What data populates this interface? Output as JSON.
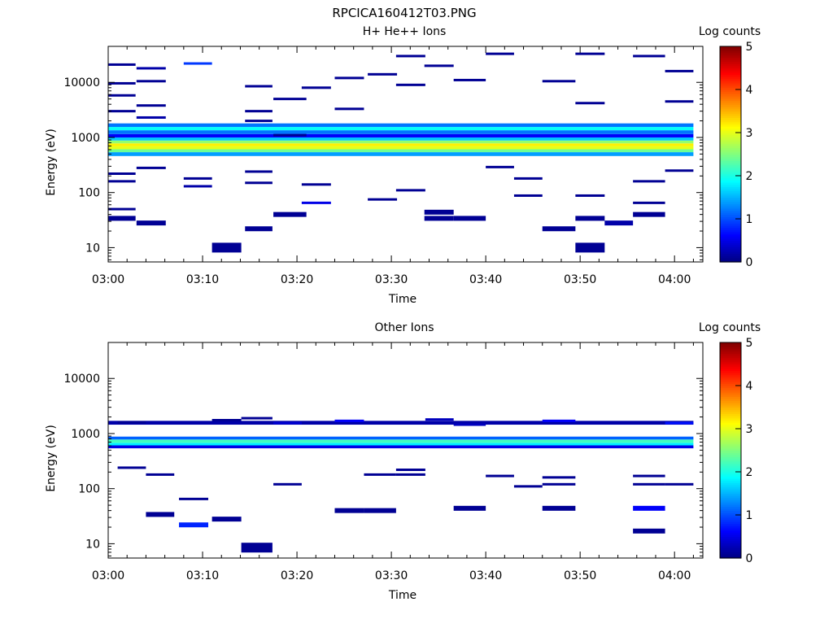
{
  "figure_title": "RPCICA160412T03.PNG",
  "colorbar": {
    "label": "Log counts",
    "ticks": [
      "0",
      "1",
      "2",
      "3",
      "4",
      "5"
    ],
    "range": [
      0,
      5
    ]
  },
  "chart_data": [
    {
      "type": "heatmap",
      "title": "H+ He++ Ions",
      "xlabel": "Time",
      "ylabel": "Energy (eV)",
      "y_scale": "log",
      "x_ticks": [
        "03:00",
        "03:10",
        "03:20",
        "03:30",
        "03:40",
        "03:50",
        "04:00"
      ],
      "y_ticks": [
        "10",
        "100",
        "1000",
        "10000"
      ],
      "xlim_minutes": [
        0,
        63
      ],
      "ylim": [
        5.5,
        45000
      ],
      "cells": [
        {
          "t0": 0,
          "t1": 2.9,
          "e": 34,
          "v": 0.1
        },
        {
          "t0": 0,
          "t1": 2.9,
          "e": 50,
          "v": 0.1
        },
        {
          "t0": 0,
          "t1": 2.9,
          "e": 160,
          "v": 0.1
        },
        {
          "t0": 0,
          "t1": 2.9,
          "e": 220,
          "v": 0.1
        },
        {
          "t0": 0,
          "t1": 2.9,
          "e": 3000,
          "v": 0.1
        },
        {
          "t0": 0,
          "t1": 2.9,
          "e": 5800,
          "v": 0.1
        },
        {
          "t0": 0,
          "t1": 2.9,
          "e": 9600,
          "v": 0.1
        },
        {
          "t0": 0,
          "t1": 2.9,
          "e": 21000,
          "v": 0.1
        },
        {
          "t0": 3,
          "t1": 6.1,
          "e": 28,
          "v": 0.1
        },
        {
          "t0": 3,
          "t1": 6.1,
          "e": 280,
          "v": 0.1
        },
        {
          "t0": 3,
          "t1": 6.1,
          "e": 2300,
          "v": 0.2
        },
        {
          "t0": 3,
          "t1": 6.1,
          "e": 3800,
          "v": 0.1
        },
        {
          "t0": 3,
          "t1": 6.1,
          "e": 10500,
          "v": 0.1
        },
        {
          "t0": 3,
          "t1": 6.1,
          "e": 18000,
          "v": 0.2
        },
        {
          "t0": 8,
          "t1": 11,
          "e": 130,
          "v": 0.2
        },
        {
          "t0": 8,
          "t1": 11,
          "e": 180,
          "v": 0.1
        },
        {
          "t0": 8,
          "t1": 11,
          "e": 22000,
          "v": 0.9
        },
        {
          "t0": 11,
          "t1": 14.1,
          "e": 10,
          "v": 0.1
        },
        {
          "t0": 14.5,
          "t1": 17.4,
          "e": 22,
          "v": 0.1
        },
        {
          "t0": 14.5,
          "t1": 17.4,
          "e": 150,
          "v": 0.1
        },
        {
          "t0": 14.5,
          "t1": 17.4,
          "e": 240,
          "v": 0.1
        },
        {
          "t0": 14.5,
          "t1": 17.4,
          "e": 2000,
          "v": 0.1
        },
        {
          "t0": 14.5,
          "t1": 17.4,
          "e": 3000,
          "v": 0.1
        },
        {
          "t0": 14.5,
          "t1": 17.4,
          "e": 8500,
          "v": 0.1
        },
        {
          "t0": 17.5,
          "t1": 21,
          "e": 40,
          "v": 0.1
        },
        {
          "t0": 17.5,
          "t1": 21,
          "e": 1100,
          "v": 0.1
        },
        {
          "t0": 17.5,
          "t1": 21,
          "e": 5000,
          "v": 0.1
        },
        {
          "t0": 20.5,
          "t1": 23.6,
          "e": 65,
          "v": 0.5
        },
        {
          "t0": 20.5,
          "t1": 23.6,
          "e": 140,
          "v": 0.1
        },
        {
          "t0": 20.5,
          "t1": 23.6,
          "e": 8000,
          "v": 0.1
        },
        {
          "t0": 24,
          "t1": 27.1,
          "e": 3300,
          "v": 0.1
        },
        {
          "t0": 24,
          "t1": 27.1,
          "e": 12000,
          "v": 0.1
        },
        {
          "t0": 27.5,
          "t1": 30.6,
          "e": 75,
          "v": 0.1
        },
        {
          "t0": 27.5,
          "t1": 30.6,
          "e": 14000,
          "v": 0.1
        },
        {
          "t0": 30.5,
          "t1": 33.6,
          "e": 110,
          "v": 0.1
        },
        {
          "t0": 30.5,
          "t1": 33.6,
          "e": 9000,
          "v": 0.1
        },
        {
          "t0": 30.5,
          "t1": 33.6,
          "e": 30000,
          "v": 0.1
        },
        {
          "t0": 33.5,
          "t1": 36.6,
          "e": 34,
          "v": 0.1
        },
        {
          "t0": 33.5,
          "t1": 36.6,
          "e": 44,
          "v": 0.1
        },
        {
          "t0": 33.5,
          "t1": 36.6,
          "e": 20000,
          "v": 0.1
        },
        {
          "t0": 36.6,
          "t1": 40,
          "e": 34,
          "v": 0.1
        },
        {
          "t0": 36.6,
          "t1": 40,
          "e": 11000,
          "v": 0.1
        },
        {
          "t0": 40,
          "t1": 43,
          "e": 290,
          "v": 0.1
        },
        {
          "t0": 40,
          "t1": 43,
          "e": 33000,
          "v": 0.1
        },
        {
          "t0": 43,
          "t1": 46,
          "e": 88,
          "v": 0.1
        },
        {
          "t0": 43,
          "t1": 46,
          "e": 180,
          "v": 0.1
        },
        {
          "t0": 46,
          "t1": 49.5,
          "e": 22,
          "v": 0.1
        },
        {
          "t0": 46,
          "t1": 49.5,
          "e": 10500,
          "v": 0.1
        },
        {
          "t0": 49.5,
          "t1": 52.6,
          "e": 10,
          "v": 0.1
        },
        {
          "t0": 49.5,
          "t1": 52.6,
          "e": 34,
          "v": 0.1
        },
        {
          "t0": 49.5,
          "t1": 52.6,
          "e": 88,
          "v": 0.1
        },
        {
          "t0": 49.5,
          "t1": 52.6,
          "e": 4200,
          "v": 0.1
        },
        {
          "t0": 49.5,
          "t1": 52.6,
          "e": 33000,
          "v": 0.1
        },
        {
          "t0": 52.6,
          "t1": 55.6,
          "e": 28,
          "v": 0.2
        },
        {
          "t0": 55.6,
          "t1": 59,
          "e": 40,
          "v": 0.1
        },
        {
          "t0": 55.6,
          "t1": 59,
          "e": 65,
          "v": 0.1
        },
        {
          "t0": 55.6,
          "t1": 59,
          "e": 160,
          "v": 0.1
        },
        {
          "t0": 55.6,
          "t1": 59,
          "e": 30000,
          "v": 0.1
        },
        {
          "t0": 59,
          "t1": 62,
          "e": 250,
          "v": 0.1
        },
        {
          "t0": 59,
          "t1": 62,
          "e": 4500,
          "v": 0.1
        },
        {
          "t0": 59,
          "t1": 62,
          "e": 16000,
          "v": 0.1
        }
      ],
      "bands": [
        {
          "e0": 460,
          "e1": 540,
          "v": 1.4
        },
        {
          "e0": 540,
          "e1": 610,
          "v": 2.4
        },
        {
          "e0": 610,
          "e1": 700,
          "v": 3.0
        },
        {
          "e0": 700,
          "e1": 780,
          "v": 3.2
        },
        {
          "e0": 780,
          "e1": 880,
          "v": 2.6
        },
        {
          "e0": 880,
          "e1": 1000,
          "v": 1.6
        },
        {
          "e0": 1000,
          "e1": 1150,
          "v": 0.6
        },
        {
          "e0": 1150,
          "e1": 1350,
          "v": 1.2
        },
        {
          "e0": 1350,
          "e1": 1550,
          "v": 1.9
        },
        {
          "e0": 1550,
          "e1": 1800,
          "v": 1.2
        }
      ],
      "band_tlim": [
        0,
        62
      ]
    },
    {
      "type": "heatmap",
      "title": "Other Ions",
      "xlabel": "Time",
      "ylabel": "Energy (eV)",
      "y_scale": "log",
      "x_ticks": [
        "03:00",
        "03:10",
        "03:20",
        "03:30",
        "03:40",
        "03:50",
        "04:00"
      ],
      "y_ticks": [
        "10",
        "100",
        "1000",
        "10000"
      ],
      "xlim_minutes": [
        0,
        63
      ],
      "ylim": [
        5.5,
        45000
      ],
      "cells": [
        {
          "t0": 1,
          "t1": 4,
          "e": 240,
          "v": 0.1
        },
        {
          "t0": 1,
          "t1": 4,
          "e": 1600,
          "v": 0.1
        },
        {
          "t0": 4,
          "t1": 7,
          "e": 34,
          "v": 0.1
        },
        {
          "t0": 4,
          "t1": 7,
          "e": 180,
          "v": 0.1
        },
        {
          "t0": 7.5,
          "t1": 10.6,
          "e": 22,
          "v": 0.8
        },
        {
          "t0": 7.5,
          "t1": 10.6,
          "e": 65,
          "v": 0.1
        },
        {
          "t0": 11,
          "t1": 14.1,
          "e": 28,
          "v": 0.1
        },
        {
          "t0": 11,
          "t1": 14.1,
          "e": 1750,
          "v": 0.1
        },
        {
          "t0": 14.1,
          "t1": 17.4,
          "e": 8.5,
          "v": 0.1
        },
        {
          "t0": 14.1,
          "t1": 17.4,
          "e": 1900,
          "v": 0.1
        },
        {
          "t0": 17.5,
          "t1": 20.5,
          "e": 120,
          "v": 0.1
        },
        {
          "t0": 17.5,
          "t1": 20.5,
          "e": 1550,
          "v": 0.4
        },
        {
          "t0": 24,
          "t1": 27.1,
          "e": 40,
          "v": 0.1
        },
        {
          "t0": 24,
          "t1": 27.1,
          "e": 1700,
          "v": 0.6
        },
        {
          "t0": 27.1,
          "t1": 30.5,
          "e": 40,
          "v": 0.1
        },
        {
          "t0": 27.1,
          "t1": 30.5,
          "e": 180,
          "v": 0.1
        },
        {
          "t0": 30.5,
          "t1": 33.6,
          "e": 180,
          "v": 0.1
        },
        {
          "t0": 30.5,
          "t1": 33.6,
          "e": 220,
          "v": 0.1
        },
        {
          "t0": 33.6,
          "t1": 36.6,
          "e": 1800,
          "v": 0.3
        },
        {
          "t0": 36.6,
          "t1": 40,
          "e": 44,
          "v": 0.1
        },
        {
          "t0": 36.6,
          "t1": 40,
          "e": 1450,
          "v": 0.3
        },
        {
          "t0": 40,
          "t1": 43,
          "e": 170,
          "v": 0.1
        },
        {
          "t0": 43,
          "t1": 46,
          "e": 110,
          "v": 0.1
        },
        {
          "t0": 46,
          "t1": 49.5,
          "e": 44,
          "v": 0.1
        },
        {
          "t0": 46,
          "t1": 49.5,
          "e": 120,
          "v": 0.1
        },
        {
          "t0": 46,
          "t1": 49.5,
          "e": 160,
          "v": 0.1
        },
        {
          "t0": 46,
          "t1": 49.5,
          "e": 1700,
          "v": 0.6
        },
        {
          "t0": 55.6,
          "t1": 59,
          "e": 17,
          "v": 0.1
        },
        {
          "t0": 55.6,
          "t1": 59,
          "e": 44,
          "v": 0.6
        },
        {
          "t0": 55.6,
          "t1": 59,
          "e": 120,
          "v": 0.1
        },
        {
          "t0": 55.6,
          "t1": 59,
          "e": 170,
          "v": 0.1
        },
        {
          "t0": 59,
          "t1": 62,
          "e": 120,
          "v": 0.1
        },
        {
          "t0": 59,
          "t1": 62,
          "e": 1550,
          "v": 0.7
        }
      ],
      "bands": [
        {
          "e0": 540,
          "e1": 610,
          "v": 0.5
        },
        {
          "e0": 610,
          "e1": 680,
          "v": 1.8
        },
        {
          "e0": 680,
          "e1": 780,
          "v": 2.2
        },
        {
          "e0": 780,
          "e1": 880,
          "v": 1.1
        },
        {
          "e0": 1450,
          "e1": 1700,
          "v": 0.2
        }
      ],
      "band_tlim": [
        0,
        62
      ]
    }
  ]
}
